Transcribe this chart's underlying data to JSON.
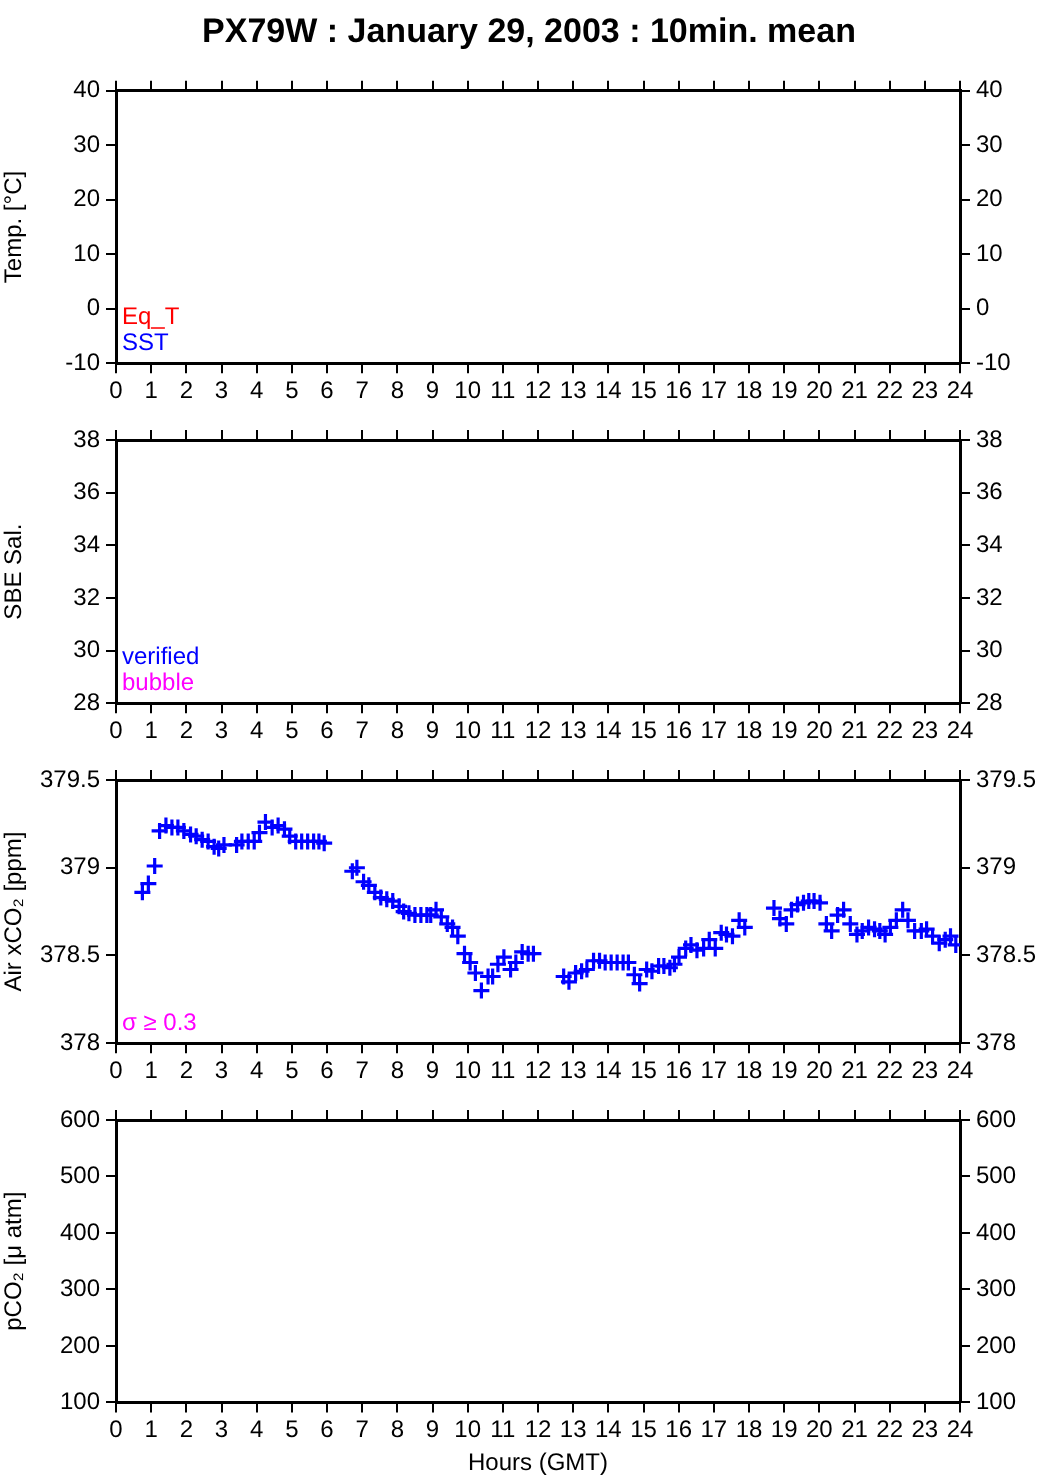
{
  "chart_data": [
    {
      "type": "scatter",
      "title": "PX79W : January 29, 2003 : 10min. mean",
      "ylabel": "Temp. [°C]",
      "xlim": [
        0,
        24
      ],
      "xticks": [
        0,
        1,
        2,
        3,
        4,
        5,
        6,
        7,
        8,
        9,
        10,
        11,
        12,
        13,
        14,
        15,
        16,
        17,
        18,
        19,
        20,
        21,
        22,
        23,
        24
      ],
      "ylim": [
        -10,
        40
      ],
      "yticks": [
        -10,
        0,
        10,
        20,
        30,
        40
      ],
      "y2lim": [
        -10,
        40
      ],
      "y2ticks": [
        -10,
        0,
        10,
        20,
        30,
        40
      ],
      "series": [
        {
          "name": "Eq_T",
          "color": "#ff0000",
          "x": [
            null
          ],
          "values": [
            null
          ]
        },
        {
          "name": "SST",
          "color": "#0000ff",
          "x": [
            null
          ],
          "values": [
            null
          ]
        }
      ]
    },
    {
      "type": "scatter",
      "ylabel": "SBE Sal.",
      "xlim": [
        0,
        24
      ],
      "xticks": [
        0,
        1,
        2,
        3,
        4,
        5,
        6,
        7,
        8,
        9,
        10,
        11,
        12,
        13,
        14,
        15,
        16,
        17,
        18,
        19,
        20,
        21,
        22,
        23,
        24
      ],
      "ylim": [
        28,
        38
      ],
      "yticks": [
        28,
        30,
        32,
        34,
        36,
        38
      ],
      "y2lim": [
        28,
        38
      ],
      "y2ticks": [
        28,
        30,
        32,
        34,
        36,
        38
      ],
      "series": [
        {
          "name": "verified",
          "color": "#0000ff",
          "x": [
            null
          ],
          "values": [
            null
          ]
        },
        {
          "name": "bubble",
          "color": "#ff00ff",
          "x": [
            null
          ],
          "values": [
            null
          ]
        }
      ]
    },
    {
      "type": "scatter",
      "ylabel": "Air xCO₂ [ppm]",
      "xlim": [
        0,
        24
      ],
      "xticks": [
        0,
        1,
        2,
        3,
        4,
        5,
        6,
        7,
        8,
        9,
        10,
        11,
        12,
        13,
        14,
        15,
        16,
        17,
        18,
        19,
        20,
        21,
        22,
        23,
        24
      ],
      "ylim": [
        378,
        379.5
      ],
      "yticks": [
        378,
        378.5,
        379,
        379.5
      ],
      "y2lim": [
        378,
        379.5
      ],
      "y2ticks": [
        378,
        378.5,
        379,
        379.5
      ],
      "marker": "cross",
      "series": [
        {
          "color": "#0000ff",
          "x": [
            0.75,
            0.92,
            1.1,
            1.24,
            1.42,
            1.59,
            1.76,
            1.93,
            2.12,
            2.28,
            2.45,
            2.62,
            2.79,
            2.92,
            3.07,
            3.43,
            3.58,
            3.76,
            3.93,
            4.08,
            4.25,
            4.44,
            4.61,
            4.79,
            4.94,
            5.11,
            5.28,
            5.45,
            5.62,
            5.77,
            5.92,
            6.72,
            6.85,
            7.04,
            7.19,
            7.36,
            7.53,
            7.7,
            7.87,
            8.05,
            8.18,
            8.33,
            8.5,
            8.67,
            8.84,
            8.95,
            9.1,
            9.25,
            9.42,
            9.57,
            9.72,
            9.91,
            10.07,
            10.22,
            10.39,
            10.58,
            10.71,
            10.86,
            11.03,
            11.22,
            11.37,
            11.55,
            11.72,
            11.87,
            12.73,
            12.88,
            13.07,
            13.24,
            13.39,
            13.58,
            13.75,
            13.91,
            14.08,
            14.25,
            14.42,
            14.57,
            14.74,
            14.89,
            15.09,
            15.24,
            15.43,
            15.58,
            15.75,
            15.88,
            16.01,
            16.2,
            16.35,
            16.52,
            16.71,
            16.87,
            17.04,
            17.21,
            17.36,
            17.53,
            17.72,
            17.88,
            18.71,
            18.88,
            19.06,
            19.21,
            19.38,
            19.55,
            19.7,
            19.85,
            20.02,
            20.2,
            20.35,
            20.52,
            20.69,
            20.88,
            21.07,
            21.22,
            21.4,
            21.57,
            21.72,
            21.87,
            22.02,
            22.19,
            22.37,
            22.52,
            22.71,
            22.9,
            23.05,
            23.22,
            23.41,
            23.58,
            23.73,
            23.88
          ],
          "values": [
            378.86,
            378.91,
            379.01,
            379.21,
            379.24,
            379.23,
            379.23,
            379.21,
            379.19,
            379.18,
            379.16,
            379.15,
            379.12,
            379.11,
            379.13,
            379.13,
            379.15,
            379.15,
            379.15,
            379.2,
            379.26,
            379.23,
            379.24,
            379.22,
            379.18,
            379.15,
            379.15,
            379.15,
            379.15,
            379.15,
            379.14,
            378.98,
            379.0,
            378.92,
            378.9,
            378.86,
            378.83,
            378.82,
            378.81,
            378.78,
            378.75,
            378.74,
            378.73,
            378.73,
            378.73,
            378.73,
            378.76,
            378.72,
            378.68,
            378.66,
            378.61,
            378.51,
            378.46,
            378.4,
            378.3,
            378.38,
            378.38,
            378.45,
            378.49,
            378.42,
            378.46,
            378.52,
            378.51,
            378.51,
            378.38,
            378.35,
            378.4,
            378.41,
            378.42,
            378.47,
            378.47,
            378.46,
            378.46,
            378.46,
            378.46,
            378.46,
            378.39,
            378.34,
            378.42,
            378.41,
            378.44,
            378.44,
            378.43,
            378.45,
            378.49,
            378.54,
            378.56,
            378.53,
            378.54,
            378.59,
            378.54,
            378.63,
            378.62,
            378.61,
            378.7,
            378.66,
            378.77,
            378.71,
            378.68,
            378.76,
            378.79,
            378.8,
            378.81,
            378.81,
            378.8,
            378.68,
            378.64,
            378.73,
            378.76,
            378.68,
            378.62,
            378.64,
            378.66,
            378.65,
            378.64,
            378.62,
            378.66,
            378.7,
            378.76,
            378.7,
            378.64,
            378.64,
            378.65,
            378.61,
            378.57,
            378.59,
            378.61,
            378.56
          ]
        },
        {
          "name": "σ ≥ 0.3",
          "color": "#ff00ff",
          "x": [
            null
          ],
          "values": [
            null
          ]
        }
      ]
    },
    {
      "type": "scatter",
      "xlabel": "Hours (GMT)",
      "ylabel": "pCO₂ [μ atm]",
      "xlim": [
        0,
        24
      ],
      "xticks": [
        0,
        1,
        2,
        3,
        4,
        5,
        6,
        7,
        8,
        9,
        10,
        11,
        12,
        13,
        14,
        15,
        16,
        17,
        18,
        19,
        20,
        21,
        22,
        23,
        24
      ],
      "ylim": [
        100,
        600
      ],
      "yticks": [
        100,
        200,
        300,
        400,
        500,
        600
      ],
      "y2lim": [
        100,
        600
      ],
      "y2ticks": [
        100,
        200,
        300,
        400,
        500,
        600
      ]
    }
  ]
}
